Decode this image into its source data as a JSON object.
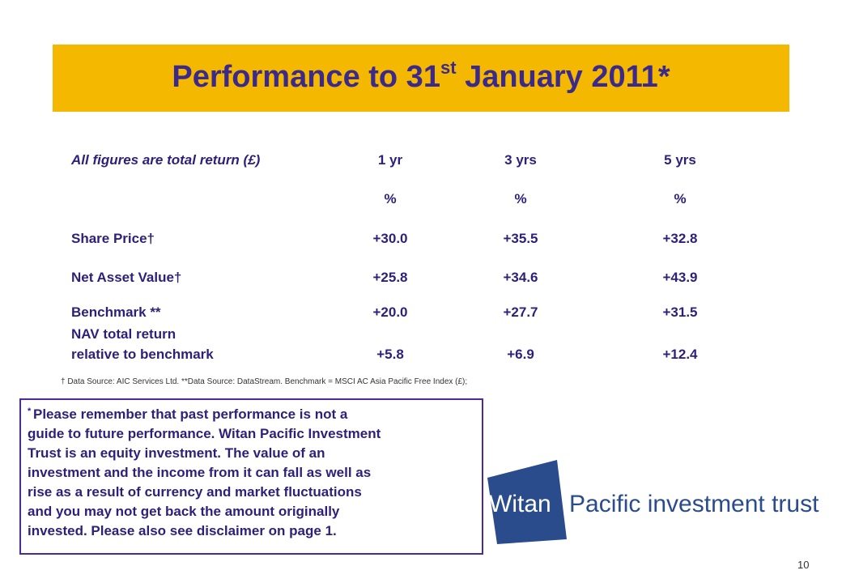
{
  "header": {
    "title_main": "Performance to 31",
    "title_sup": "st",
    "title_end": " January 2011*"
  },
  "table": {
    "header": [
      "All figures are total return (£)",
      "1 yr",
      "3 yrs",
      "5 yrs"
    ],
    "units": [
      "%",
      "%",
      "%"
    ],
    "rows": [
      {
        "label": [
          "Share Price†"
        ],
        "cells": [
          "+30.0",
          "+35.5",
          "+32.8"
        ]
      },
      {
        "label": [
          "Net Asset Value†"
        ],
        "cells": [
          "+25.8",
          "+34.6",
          "+43.9"
        ]
      },
      {
        "label": [
          "Benchmark **"
        ],
        "cells": [
          "+20.0",
          "+27.7",
          "+31.5"
        ]
      },
      {
        "label": [
          "NAV total return",
          "relative to benchmark"
        ],
        "cells": [
          "+5.8",
          "+6.9",
          "+12.4"
        ]
      }
    ]
  },
  "footnote": "† Data Source: AIC Services Ltd. **Data Source: DataStream. Benchmark = MSCI AC Asia Pacific Free Index (£);",
  "disclaimer": {
    "marker": "*",
    "lines": [
      "Please remember that past performance is not a",
      "guide to future performance. Witan Pacific Investment",
      "Trust is an equity investment. The value of an",
      "investment and the income from it can fall as well as",
      "rise as a result of currency and market fluctuations",
      "and you may not get back the amount originally",
      "invested. Please also see disclaimer on page 1."
    ]
  },
  "logo": {
    "mark": "Witan",
    "text": "Pacific investment trust"
  },
  "page_number": "10"
}
